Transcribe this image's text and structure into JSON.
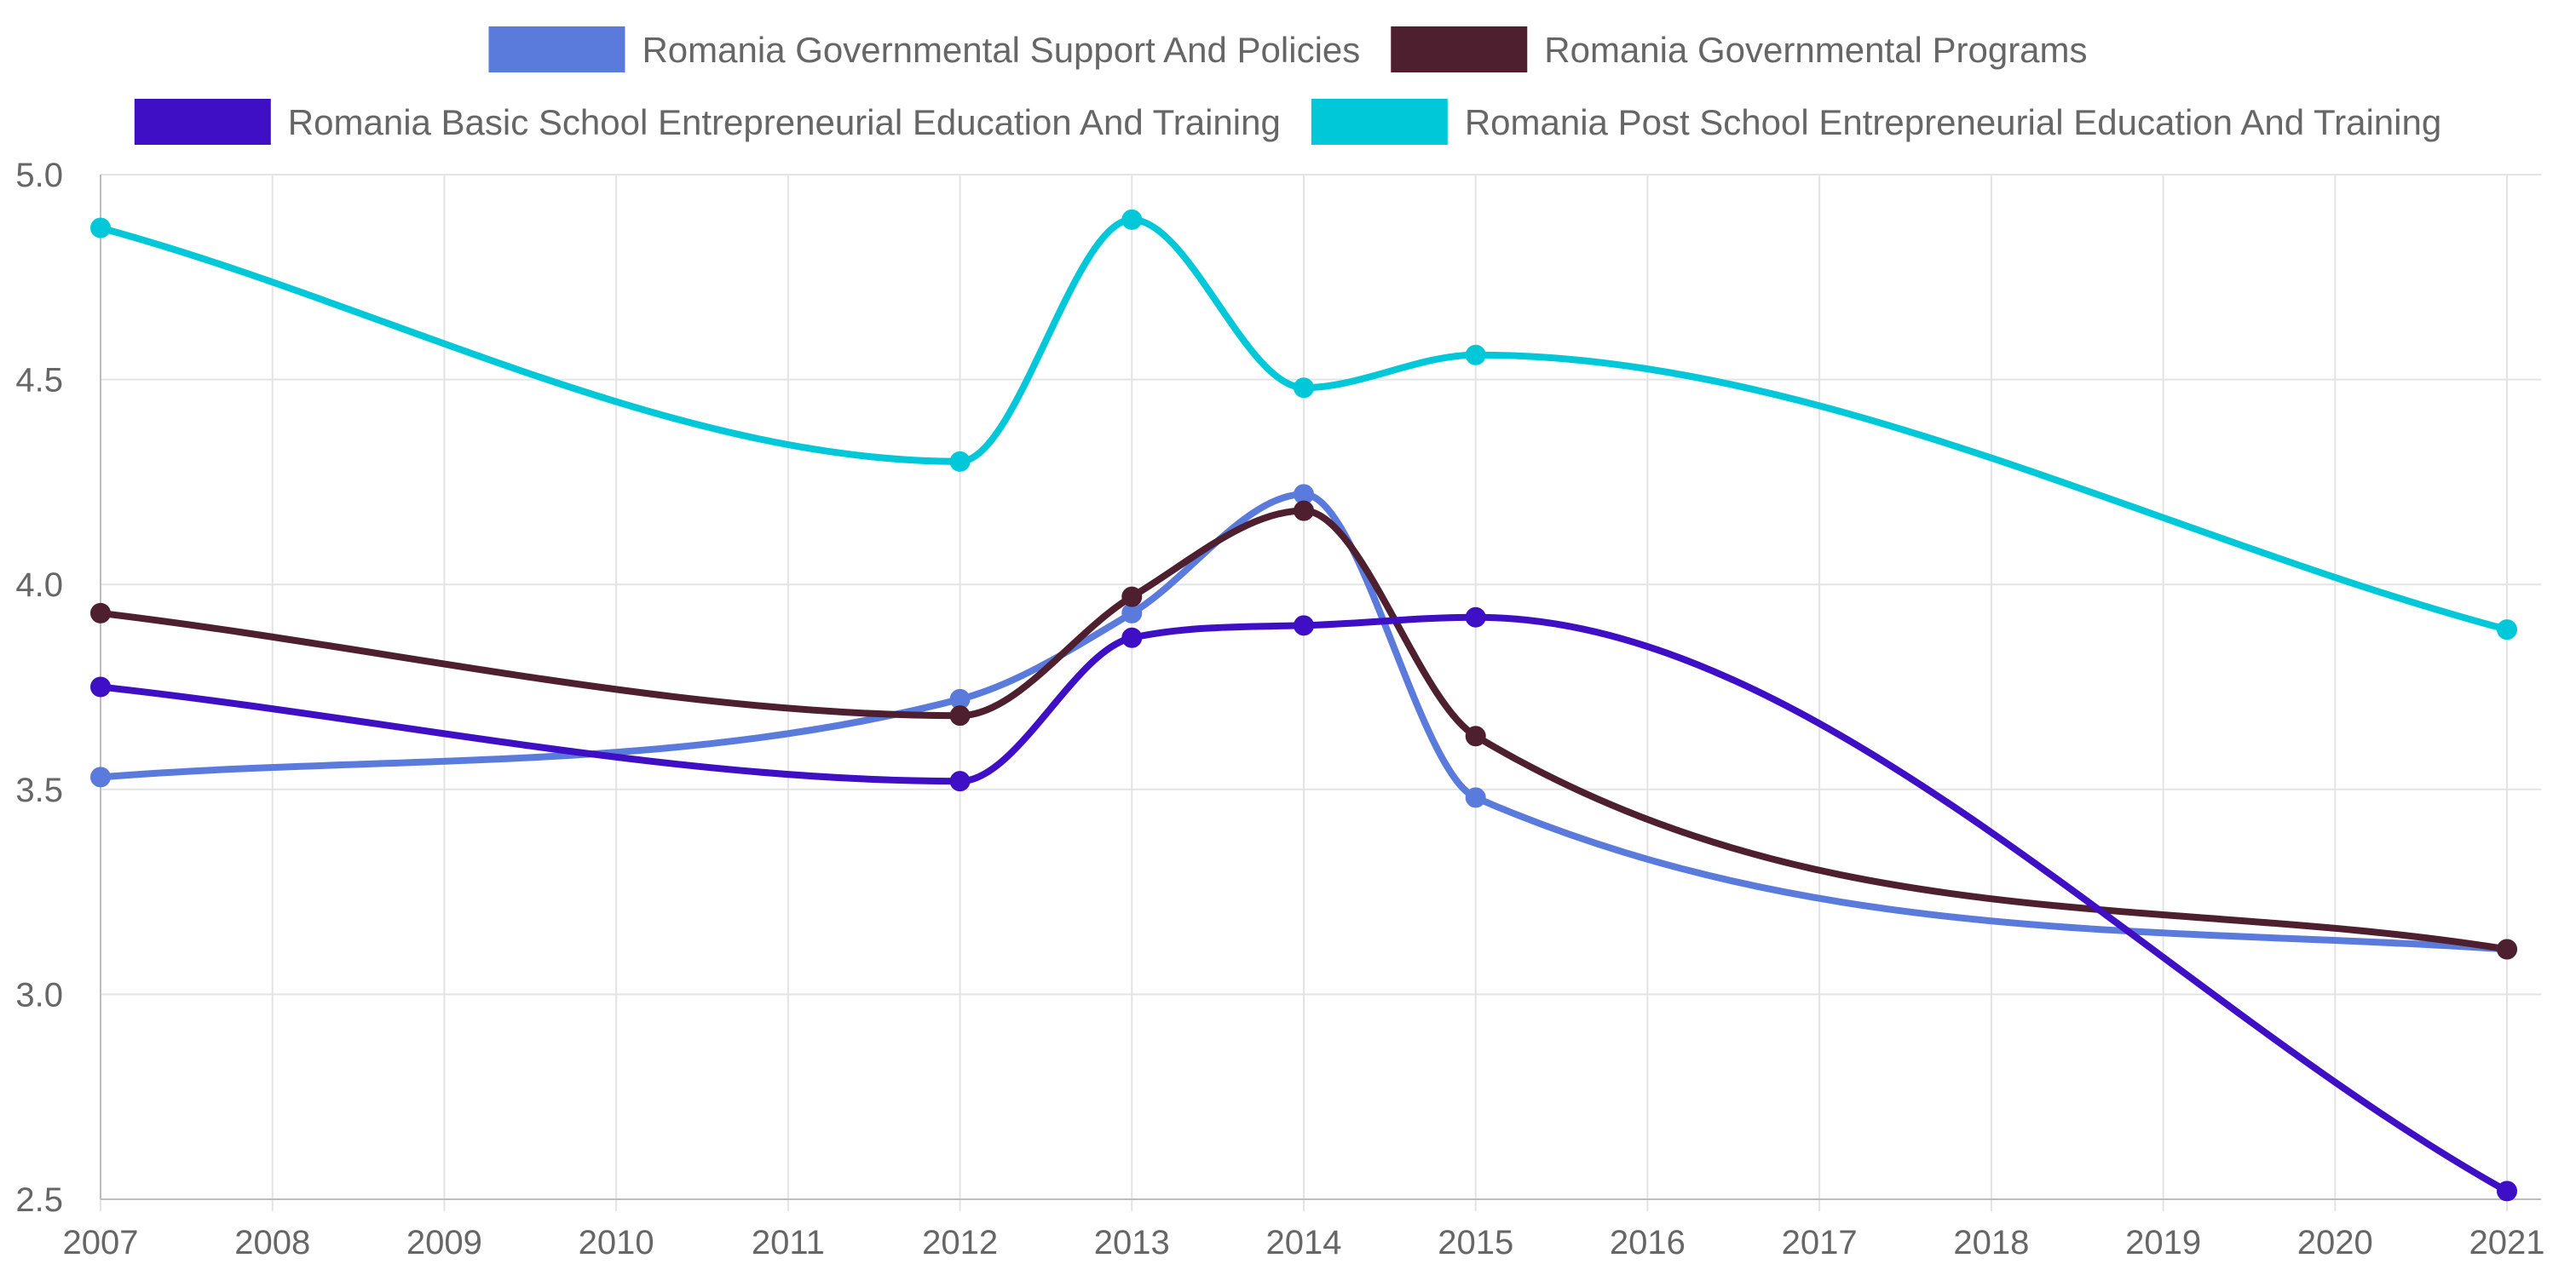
{
  "chart_data": {
    "type": "line",
    "title": "",
    "xlabel": "",
    "ylabel": "",
    "categories": [
      "2007",
      "2008",
      "2009",
      "2010",
      "2011",
      "2012",
      "2013",
      "2014",
      "2015",
      "2016",
      "2017",
      "2018",
      "2019",
      "2020",
      "2021"
    ],
    "y_ticks": [
      "2.5",
      "3.0",
      "3.5",
      "4.0",
      "4.5",
      "5.0"
    ],
    "ylim": [
      2.5,
      5.0
    ],
    "grid": true,
    "legend_position": "top-center",
    "series": [
      {
        "name": "Romania Governmental Support And Policies",
        "color": "#5b7bdc",
        "points": [
          {
            "x": "2007",
            "y": 3.53
          },
          {
            "x": "2012",
            "y": 3.72
          },
          {
            "x": "2013",
            "y": 3.93
          },
          {
            "x": "2014",
            "y": 4.22
          },
          {
            "x": "2015",
            "y": 3.48
          },
          {
            "x": "2021",
            "y": 3.11
          }
        ]
      },
      {
        "name": "Romania Governmental Programs",
        "color": "#4e1f2e",
        "points": [
          {
            "x": "2007",
            "y": 3.93
          },
          {
            "x": "2012",
            "y": 3.68
          },
          {
            "x": "2013",
            "y": 3.97
          },
          {
            "x": "2014",
            "y": 4.18
          },
          {
            "x": "2015",
            "y": 3.63
          },
          {
            "x": "2021",
            "y": 3.11
          }
        ]
      },
      {
        "name": "Romania Basic School Entrepreneurial Education And Training",
        "color": "#3e0fc4",
        "points": [
          {
            "x": "2007",
            "y": 3.75
          },
          {
            "x": "2012",
            "y": 3.52
          },
          {
            "x": "2013",
            "y": 3.87
          },
          {
            "x": "2014",
            "y": 3.9
          },
          {
            "x": "2015",
            "y": 3.92
          },
          {
            "x": "2021",
            "y": 2.52
          }
        ]
      },
      {
        "name": "Romania Post School Entrepreneurial Education And Training",
        "color": "#00c8d8",
        "points": [
          {
            "x": "2007",
            "y": 4.87
          },
          {
            "x": "2012",
            "y": 4.3
          },
          {
            "x": "2013",
            "y": 4.89
          },
          {
            "x": "2014",
            "y": 4.48
          },
          {
            "x": "2015",
            "y": 4.56
          },
          {
            "x": "2021",
            "y": 3.89
          }
        ]
      }
    ]
  }
}
